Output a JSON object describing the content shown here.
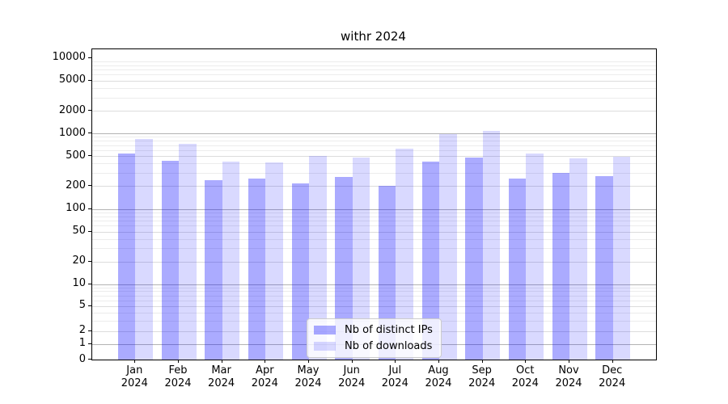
{
  "title": "withr 2024",
  "legend": {
    "entries": [
      {
        "label": "Nb of distinct IPs",
        "color": "rgba(0,0,255,0.33)"
      },
      {
        "label": "Nb of downloads",
        "color": "rgba(0,0,255,0.15)"
      }
    ],
    "position": "lower center"
  },
  "colors": {
    "distinct_ips_bar": "rgba(0,0,255,0.33)",
    "downloads_bar": "rgba(0,0,255,0.15)",
    "grid_major": "#b3b3b3",
    "grid_medium": "#dcdcdc",
    "grid_minor": "#ececec",
    "axis": "#000000",
    "background": "#ffffff"
  },
  "chart_data": {
    "type": "bar",
    "title": "withr 2024",
    "categories": [
      "Jan",
      "Feb",
      "Mar",
      "Apr",
      "May",
      "Jun",
      "Jul",
      "Aug",
      "Sep",
      "Oct",
      "Nov",
      "Dec"
    ],
    "category_year": "2024",
    "series": [
      {
        "name": "Nb of distinct IPs",
        "color": "rgba(0,0,255,0.33)",
        "values": [
          545,
          435,
          240,
          250,
          218,
          265,
          200,
          425,
          485,
          250,
          300,
          275
        ]
      },
      {
        "name": "Nb of downloads",
        "color": "rgba(0,0,255,0.15)",
        "values": [
          840,
          720,
          420,
          415,
          505,
          480,
          625,
          990,
          1080,
          545,
          470,
          495
        ]
      }
    ],
    "xlabel": "",
    "ylabel": "",
    "yscale": "asinh-log",
    "ylim": [
      0,
      13000
    ],
    "ytick_values": [
      10000,
      5000,
      2000,
      1000,
      500,
      200,
      100,
      50,
      20,
      10,
      5,
      2,
      1,
      0
    ],
    "ytick_labels": [
      "10000",
      "5000",
      "2000",
      "1000",
      "500",
      "200",
      "100",
      "50",
      "20",
      "10",
      "5",
      "2",
      "1",
      "0"
    ],
    "grid": "both",
    "legend_position": "lower center"
  }
}
